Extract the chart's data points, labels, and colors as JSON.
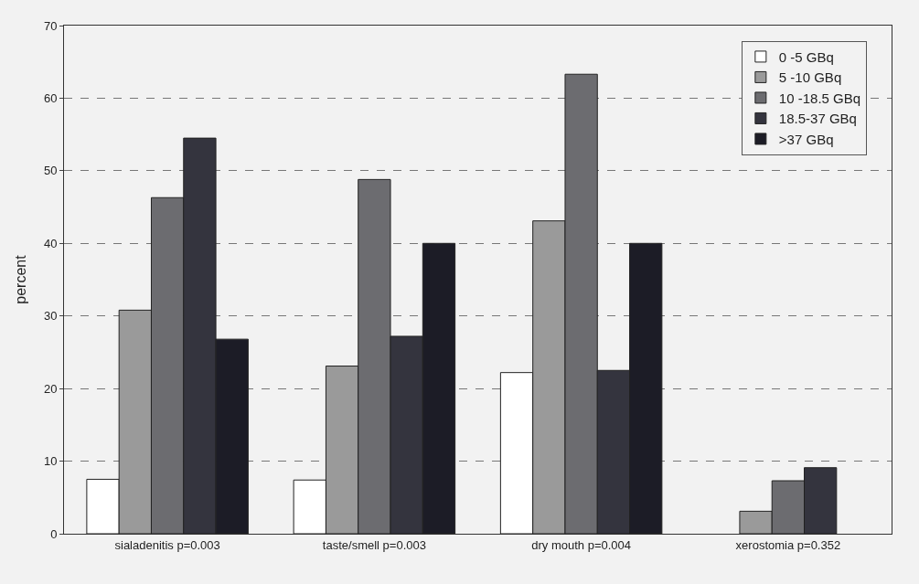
{
  "chart_data": {
    "type": "bar",
    "ylabel": "percent",
    "categories": [
      "sialadenitis p=0.003",
      "taste/smell p=0.003",
      "dry mouth p=0.004",
      "xerostomia p=0.352"
    ],
    "series": [
      {
        "name": "0 -5 GBq",
        "color": "#ffffff",
        "values": [
          7.5,
          7.4,
          22.2,
          null
        ]
      },
      {
        "name": "5 -10 GBq",
        "color": "#9a9a9a",
        "values": [
          30.8,
          23.1,
          43.1,
          3.1
        ]
      },
      {
        "name": "10 -18.5 GBq",
        "color": "#6c6c70",
        "values": [
          46.3,
          48.8,
          63.3,
          7.3
        ]
      },
      {
        "name": "18.5-37 GBq",
        "color": "#34343e",
        "values": [
          54.5,
          27.2,
          22.5,
          9.1
        ]
      },
      {
        "name": ">37 GBq",
        "color": "#1c1c26",
        "values": [
          26.8,
          40,
          40,
          null
        ]
      }
    ],
    "ylim": [
      0,
      70
    ],
    "yticks": [
      0,
      10,
      20,
      30,
      40,
      50,
      60,
      70
    ],
    "grid": "y",
    "legend": "top right"
  }
}
